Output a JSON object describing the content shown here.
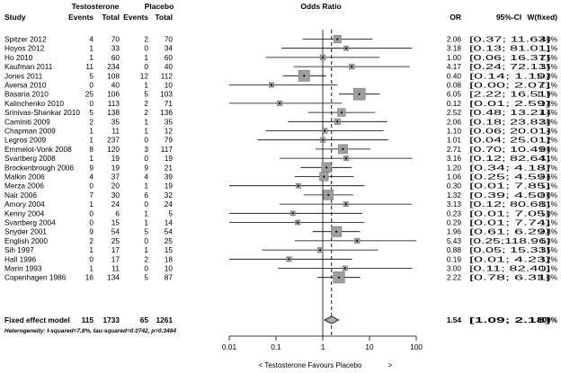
{
  "header": {
    "study": "Study",
    "testosterone": "Testosterone",
    "placebo": "Placebo",
    "events1": "Events",
    "total1": "Total",
    "events2": "Events",
    "total2": "Total",
    "odds_ratio": "Odds Ratio",
    "or": "OR",
    "ci": "95%-CI",
    "weight": "W(fixed)"
  },
  "chart_data": {
    "type": "forest",
    "title": "Odds Ratio",
    "x_scale": "log",
    "xlim": [
      0.01,
      100
    ],
    "x_ticks": [
      "0.01",
      "0.1",
      "1",
      "10",
      "100"
    ],
    "null_line": 1,
    "pooled_line": 1.54,
    "xlabel_left": "< Testosterone Favours Placebo",
    "xlabel_right": ">",
    "studies": [
      {
        "name": "Spitzer 2012",
        "e1": "4",
        "n1": "70",
        "e2": "2",
        "n2": "70",
        "or": 2.06,
        "lo": 0.37,
        "hi": 11.63,
        "or_t": "2.06",
        "ci_t": "[0.37; 11.63]",
        "w": 4.0,
        "w_t": "4.0%"
      },
      {
        "name": "Hoyos 2012",
        "e1": "1",
        "n1": "33",
        "e2": "0",
        "n2": "34",
        "or": 3.18,
        "lo": 0.13,
        "hi": 81.01,
        "or_t": "3.18",
        "ci_t": "[0.13; 81.01]",
        "w": 1.1,
        "w_t": "1.1%"
      },
      {
        "name": "Ho 2010",
        "e1": "1",
        "n1": "60",
        "e2": "1",
        "n2": "60",
        "or": 1.0,
        "lo": 0.06,
        "hi": 16.37,
        "or_t": "1.00",
        "ci_t": "[0.06; 16.37]",
        "w": 1.5,
        "w_t": "1.5%"
      },
      {
        "name": "Kaufman 2011",
        "e1": "11",
        "n1": "234",
        "e2": "0",
        "n2": "40",
        "or": 4.17,
        "lo": 0.24,
        "hi": 72.13,
        "or_t": "4.17",
        "ci_t": "[0.24; 72.13]",
        "w": 1.5,
        "w_t": "1.5%"
      },
      {
        "name": "Jones 2011",
        "e1": "5",
        "n1": "108",
        "e2": "12",
        "n2": "112",
        "or": 0.4,
        "lo": 0.14,
        "hi": 1.19,
        "or_t": "0.40",
        "ci_t": "[0.14; 1.19]",
        "w": 10.3,
        "w_t": "10.3%"
      },
      {
        "name": "Aversa 2010",
        "e1": "0",
        "n1": "40",
        "e2": "1",
        "n2": "10",
        "or": 0.08,
        "lo": 0.0,
        "hi": 2.07,
        "or_t": "0.08",
        "ci_t": "[0.00; 2.07]",
        "w": 1.1,
        "w_t": "1.1%"
      },
      {
        "name": "Basaria 2010",
        "e1": "25",
        "n1": "106",
        "e2": "5",
        "n2": "103",
        "or": 6.05,
        "lo": 2.22,
        "hi": 16.51,
        "or_t": "6.05",
        "ci_t": "[2.22; 16.51]",
        "w": 11.9,
        "w_t": "11.9%"
      },
      {
        "name": "Kalinchenko 2010",
        "e1": "0",
        "n1": "113",
        "e2": "2",
        "n2": "71",
        "or": 0.12,
        "lo": 0.01,
        "hi": 2.59,
        "or_t": "0.12",
        "ci_t": "[0.01; 2.59]",
        "w": 1.3,
        "w_t": "1.3%"
      },
      {
        "name": "Srinivas-Shankar 2010",
        "e1": "5",
        "n1": "138",
        "e2": "2",
        "n2": "136",
        "or": 2.52,
        "lo": 0.48,
        "hi": 13.21,
        "or_t": "2.52",
        "ci_t": "[0.48; 13.21]",
        "w": 4.4,
        "w_t": "4.4%"
      },
      {
        "name": "Caminiti 2009",
        "e1": "2",
        "n1": "35",
        "e2": "1",
        "n2": "35",
        "or": 2.06,
        "lo": 0.18,
        "hi": 23.83,
        "or_t": "2.06",
        "ci_t": "[0.18; 23.83]",
        "w": 2.0,
        "w_t": "2.0%"
      },
      {
        "name": "Chapman 2009",
        "e1": "1",
        "n1": "11",
        "e2": "1",
        "n2": "12",
        "or": 1.1,
        "lo": 0.06,
        "hi": 20.01,
        "or_t": "1.10",
        "ci_t": "[0.06; 20.01]",
        "w": 1.4,
        "w_t": "1.4%"
      },
      {
        "name": "Legros 2009",
        "e1": "1",
        "n1": "237",
        "e2": "0",
        "n2": "79",
        "or": 1.01,
        "lo": 0.04,
        "hi": 25.01,
        "or_t": "1.01",
        "ci_t": "[0.04; 25.01]",
        "w": 1.2,
        "w_t": "1.2%"
      },
      {
        "name": "Emmelot-Vonk 2008",
        "e1": "8",
        "n1": "120",
        "e2": "3",
        "n2": "117",
        "or": 2.71,
        "lo": 0.7,
        "hi": 10.49,
        "or_t": "2.71",
        "ci_t": "[0.70; 10.49]",
        "w": 6.6,
        "w_t": "6.6%"
      },
      {
        "name": "Svartberg 2008",
        "e1": "1",
        "n1": "19",
        "e2": "0",
        "n2": "19",
        "or": 3.16,
        "lo": 0.12,
        "hi": 82.64,
        "or_t": "3.16",
        "ci_t": "[0.12; 82.64]",
        "w": 1.1,
        "w_t": "1.1%"
      },
      {
        "name": "Brockenbrough 2006",
        "e1": "9",
        "n1": "19",
        "e2": "9",
        "n2": "21",
        "or": 1.2,
        "lo": 0.34,
        "hi": 4.18,
        "or_t": "1.20",
        "ci_t": "[0.34; 4.18]",
        "w": 7.7,
        "w_t": "7.7%"
      },
      {
        "name": "Malkin 2006",
        "e1": "4",
        "n1": "37",
        "e2": "4",
        "n2": "39",
        "or": 1.06,
        "lo": 0.25,
        "hi": 4.59,
        "or_t": "1.06",
        "ci_t": "[0.25; 4.59]",
        "w": 5.6,
        "w_t": "5.6%"
      },
      {
        "name": "Merza 2006",
        "e1": "0",
        "n1": "20",
        "e2": "1",
        "n2": "19",
        "or": 0.3,
        "lo": 0.01,
        "hi": 7.85,
        "or_t": "0.30",
        "ci_t": "[0.01; 7.85]",
        "w": 1.1,
        "w_t": "1.1%"
      },
      {
        "name": "Nair 2006",
        "e1": "7",
        "n1": "30",
        "e2": "6",
        "n2": "32",
        "or": 1.32,
        "lo": 0.39,
        "hi": 4.5,
        "or_t": "1.32",
        "ci_t": "[0.39; 4.50]",
        "w": 8.0,
        "w_t": "8.0%"
      },
      {
        "name": "Amory 2004",
        "e1": "1",
        "n1": "24",
        "e2": "0",
        "n2": "24",
        "or": 3.13,
        "lo": 0.12,
        "hi": 80.68,
        "or_t": "3.13",
        "ci_t": "[0.12; 80.68]",
        "w": 1.1,
        "w_t": "1.1%"
      },
      {
        "name": "Kenny 2004",
        "e1": "0",
        "n1": "6",
        "e2": "1",
        "n2": "5",
        "or": 0.23,
        "lo": 0.01,
        "hi": 7.05,
        "or_t": "0.23",
        "ci_t": "[0.01; 7.05]",
        "w": 1.0,
        "w_t": "1.0%"
      },
      {
        "name": "Svartberg 2004",
        "e1": "0",
        "n1": "15",
        "e2": "1",
        "n2": "14",
        "or": 0.29,
        "lo": 0.01,
        "hi": 7.74,
        "or_t": "0.29",
        "ci_t": "[0.01; 7.74]",
        "w": 1.1,
        "w_t": "1.1%"
      },
      {
        "name": "Snyder 2001",
        "e1": "9",
        "n1": "54",
        "e2": "5",
        "n2": "54",
        "or": 1.96,
        "lo": 0.61,
        "hi": 6.29,
        "or_t": "1.96",
        "ci_t": "[0.61; 6.29]",
        "w": 8.8,
        "w_t": "8.8%"
      },
      {
        "name": "English 2000",
        "e1": "2",
        "n1": "25",
        "e2": "0",
        "n2": "25",
        "or": 5.43,
        "lo": 0.25,
        "hi": 118.96,
        "or_t": "5.43",
        "ci_t": "[0.25;118.96]",
        "w": 1.3,
        "w_t": "1.3%"
      },
      {
        "name": "Sih 1997",
        "e1": "1",
        "n1": "17",
        "e2": "1",
        "n2": "15",
        "or": 0.88,
        "lo": 0.05,
        "hi": 15.33,
        "or_t": "0.88",
        "ci_t": "[0.05; 15.33]",
        "w": 1.5,
        "w_t": "1.5%"
      },
      {
        "name": "Hall 1996",
        "e1": "0",
        "n1": "17",
        "e2": "2",
        "n2": "18",
        "or": 0.19,
        "lo": 0.01,
        "hi": 4.23,
        "or_t": "0.19",
        "ci_t": "[0.01; 4.23]",
        "w": 1.2,
        "w_t": "1.2%"
      },
      {
        "name": "Marin 1993",
        "e1": "1",
        "n1": "11",
        "e2": "0",
        "n2": "10",
        "or": 3.0,
        "lo": 0.11,
        "hi": 82.4,
        "or_t": "3.00",
        "ci_t": "[0.11; 82.40]",
        "w": 1.1,
        "w_t": "1.1%"
      },
      {
        "name": "Copenhagen 1986",
        "e1": "16",
        "n1": "134",
        "e2": "5",
        "n2": "87",
        "or": 2.22,
        "lo": 0.78,
        "hi": 6.31,
        "or_t": "2.22",
        "ci_t": "[0.78; 6.31]",
        "w": 11.0,
        "w_t": "11.0%"
      }
    ],
    "pooled": {
      "name": "Fixed effect model",
      "e1": "115",
      "n1": "1733",
      "e2": "65",
      "n2": "1261",
      "or": 1.54,
      "lo": 1.09,
      "hi": 2.18,
      "or_t": "1.54",
      "ci_t": "[1.09; 2.18]",
      "w_t": "100%"
    },
    "heterogeneity": "Heterogeneity: I-squared=7.8%, tau-squared=0.0742, p=0.3484"
  }
}
